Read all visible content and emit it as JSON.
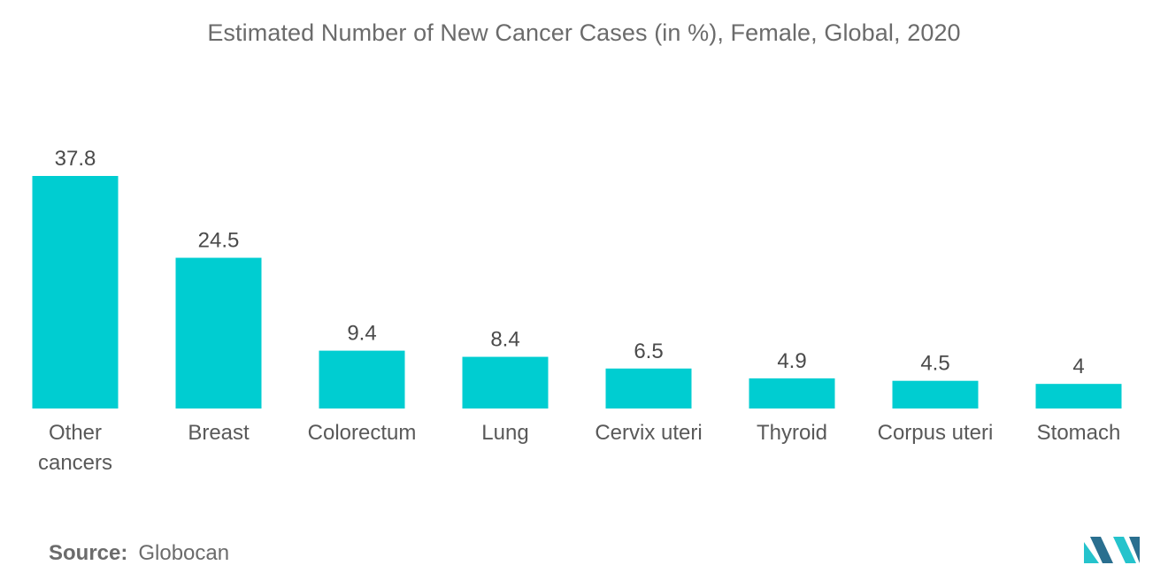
{
  "chart_data": {
    "type": "bar",
    "title": "Estimated Number of New Cancer Cases (in %), Female, Global, 2020",
    "categories": [
      [
        "Other",
        "cancers"
      ],
      [
        "Breast"
      ],
      [
        "Colorectum"
      ],
      [
        "Lung"
      ],
      [
        "Cervix uteri"
      ],
      [
        "Thyroid"
      ],
      [
        "Corpus uteri"
      ],
      [
        "Stomach"
      ]
    ],
    "values": [
      37.8,
      24.5,
      9.4,
      8.4,
      6.5,
      4.9,
      4.5,
      4
    ],
    "value_labels": [
      "37.8",
      "24.5",
      "9.4",
      "8.4",
      "6.5",
      "4.9",
      "4.5",
      "4"
    ],
    "xlabel": "",
    "ylabel": "",
    "ylim": [
      0,
      37.8
    ],
    "grid": false,
    "legend": "none",
    "bar_color": "#00cdd1"
  },
  "footer": {
    "source_label": "Source:",
    "source_value": "Globocan"
  },
  "logo": {
    "color_dark": "#2a6f8f",
    "color_light": "#25c3cc"
  }
}
